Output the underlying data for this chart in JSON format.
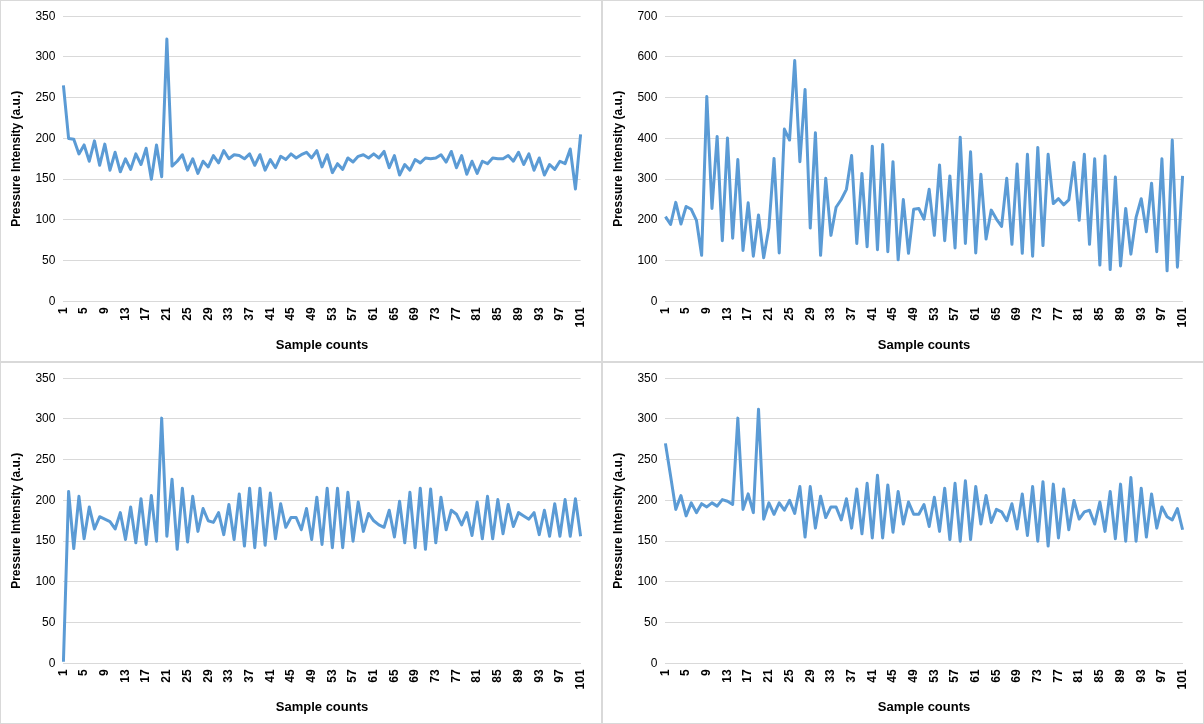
{
  "chart_data": [
    {
      "type": "line",
      "xlabel": "Sample counts",
      "ylabel": "Pressure Intensity (a.u.)",
      "categories": [
        "1",
        null,
        null,
        null,
        "5",
        null,
        null,
        null,
        "9",
        null,
        null,
        null,
        "13",
        null,
        null,
        null,
        "17",
        null,
        null,
        null,
        "21",
        null,
        null,
        null,
        "25",
        null,
        null,
        null,
        "29",
        null,
        null,
        null,
        "33",
        null,
        null,
        null,
        "37",
        null,
        null,
        null,
        "41",
        null,
        null,
        null,
        "45",
        null,
        null,
        null,
        "49",
        null,
        null,
        null,
        "53",
        null,
        null,
        null,
        "57",
        null,
        null,
        null,
        "61",
        null,
        null,
        null,
        "65",
        null,
        null,
        null,
        "69",
        null,
        null,
        null,
        "73",
        null,
        null,
        null,
        "77",
        null,
        null,
        null,
        "81",
        null,
        null,
        null,
        "85",
        null,
        null,
        null,
        "89",
        null,
        null,
        null,
        "93",
        null,
        null,
        null,
        "97",
        null,
        null,
        null,
        "101"
      ],
      "ylim": [
        0,
        350
      ],
      "yticks": [
        0,
        50,
        100,
        150,
        200,
        250,
        300,
        350
      ],
      "grid": "y",
      "legend": false,
      "marker": "none",
      "series": [
        {
          "color": "#5b9bd5",
          "values": [
            265,
            200,
            199,
            181,
            192,
            172,
            197,
            167,
            193,
            161,
            183,
            159,
            175,
            162,
            181,
            168,
            188,
            150,
            192,
            153,
            322,
            166,
            172,
            180,
            161,
            175,
            157,
            172,
            165,
            179,
            170,
            185,
            175,
            180,
            179,
            175,
            181,
            167,
            180,
            161,
            174,
            164,
            178,
            174,
            181,
            176,
            180,
            183,
            176,
            185,
            165,
            180,
            158,
            169,
            162,
            176,
            171,
            178,
            180,
            176,
            181,
            176,
            184,
            164,
            179,
            155,
            168,
            161,
            174,
            170,
            176,
            175,
            176,
            180,
            171,
            184,
            164,
            179,
            156,
            172,
            157,
            172,
            169,
            176,
            175,
            175,
            179,
            172,
            183,
            168,
            181,
            161,
            176,
            155,
            168,
            162,
            172,
            169,
            187,
            138,
            205
          ]
        }
      ]
    },
    {
      "type": "line",
      "xlabel": "Sample counts",
      "ylabel": "Pressure Intensity (a.u.)",
      "categories": [
        "1",
        null,
        null,
        null,
        "5",
        null,
        null,
        null,
        "9",
        null,
        null,
        null,
        "13",
        null,
        null,
        null,
        "17",
        null,
        null,
        null,
        "21",
        null,
        null,
        null,
        "25",
        null,
        null,
        null,
        "29",
        null,
        null,
        null,
        "33",
        null,
        null,
        null,
        "37",
        null,
        null,
        null,
        "41",
        null,
        null,
        null,
        "45",
        null,
        null,
        null,
        "49",
        null,
        null,
        null,
        "53",
        null,
        null,
        null,
        "57",
        null,
        null,
        null,
        "61",
        null,
        null,
        null,
        "65",
        null,
        null,
        null,
        "69",
        null,
        null,
        null,
        "73",
        null,
        null,
        null,
        "77",
        null,
        null,
        null,
        "81",
        null,
        null,
        null,
        "85",
        null,
        null,
        null,
        "89",
        null,
        null,
        null,
        "93",
        null,
        null,
        null,
        "97",
        null,
        null,
        null,
        "101"
      ],
      "ylim": [
        0,
        700
      ],
      "yticks": [
        0,
        100,
        200,
        300,
        400,
        500,
        600,
        700
      ],
      "grid": "y",
      "legend": false,
      "marker": "none",
      "series": [
        {
          "color": "#5b9bd5",
          "values": [
            208,
            189,
            243,
            190,
            233,
            226,
            199,
            113,
            503,
            228,
            405,
            149,
            401,
            155,
            348,
            125,
            242,
            111,
            212,
            107,
            180,
            351,
            119,
            423,
            396,
            591,
            343,
            520,
            180,
            414,
            113,
            302,
            162,
            231,
            250,
            275,
            358,
            142,
            314,
            134,
            381,
            127,
            385,
            122,
            343,
            102,
            250,
            118,
            226,
            228,
            202,
            275,
            162,
            335,
            149,
            308,
            131,
            403,
            142,
            367,
            119,
            312,
            153,
            224,
            202,
            184,
            302,
            140,
            337,
            118,
            361,
            111,
            378,
            137,
            361,
            240,
            252,
            237,
            249,
            341,
            199,
            361,
            140,
            350,
            89,
            357,
            78,
            305,
            87,
            228,
            116,
            206,
            252,
            171,
            290,
            122,
            350,
            75,
            396,
            84,
            308
          ]
        }
      ]
    },
    {
      "type": "line",
      "xlabel": "Sample counts",
      "ylabel": "Pressure Intensity (a.u.)",
      "categories": [
        "1",
        null,
        null,
        null,
        "5",
        null,
        null,
        null,
        "9",
        null,
        null,
        null,
        "13",
        null,
        null,
        null,
        "17",
        null,
        null,
        null,
        "21",
        null,
        null,
        null,
        "25",
        null,
        null,
        null,
        "29",
        null,
        null,
        null,
        "33",
        null,
        null,
        null,
        "37",
        null,
        null,
        null,
        "41",
        null,
        null,
        null,
        "45",
        null,
        null,
        null,
        "49",
        null,
        null,
        null,
        "53",
        null,
        null,
        null,
        "57",
        null,
        null,
        null,
        "61",
        null,
        null,
        null,
        "65",
        null,
        null,
        null,
        "69",
        null,
        null,
        null,
        "73",
        null,
        null,
        null,
        "77",
        null,
        null,
        null,
        "81",
        null,
        null,
        null,
        "85",
        null,
        null,
        null,
        "89",
        null,
        null,
        null,
        "93",
        null,
        null,
        null,
        "97",
        null,
        null,
        null,
        "101"
      ],
      "ylim": [
        0,
        350
      ],
      "yticks": [
        0,
        50,
        100,
        150,
        200,
        250,
        300,
        350
      ],
      "grid": "y",
      "legend": false,
      "marker": "none",
      "series": [
        {
          "color": "#5b9bd5",
          "values": [
            2,
            211,
            141,
            205,
            153,
            192,
            165,
            180,
            177,
            174,
            165,
            185,
            152,
            192,
            148,
            202,
            146,
            206,
            150,
            301,
            156,
            226,
            140,
            215,
            149,
            205,
            162,
            190,
            175,
            173,
            185,
            158,
            195,
            152,
            208,
            144,
            215,
            142,
            215,
            145,
            209,
            153,
            196,
            167,
            179,
            179,
            164,
            190,
            152,
            204,
            146,
            215,
            142,
            215,
            142,
            210,
            150,
            198,
            162,
            184,
            175,
            170,
            167,
            188,
            155,
            199,
            148,
            210,
            142,
            215,
            140,
            214,
            148,
            204,
            164,
            188,
            183,
            170,
            185,
            157,
            198,
            153,
            205,
            153,
            201,
            159,
            195,
            168,
            185,
            181,
            177,
            185,
            158,
            188,
            156,
            196,
            156,
            201,
            156,
            202,
            156
          ]
        }
      ]
    },
    {
      "type": "line",
      "xlabel": "Sample counts",
      "ylabel": "Pressure Intensity (a.u.)",
      "categories": [
        "1",
        null,
        null,
        null,
        "5",
        null,
        null,
        null,
        "9",
        null,
        null,
        null,
        "13",
        null,
        null,
        null,
        "17",
        null,
        null,
        null,
        "21",
        null,
        null,
        null,
        "25",
        null,
        null,
        null,
        "29",
        null,
        null,
        null,
        "33",
        null,
        null,
        null,
        "37",
        null,
        null,
        null,
        "41",
        null,
        null,
        null,
        "45",
        null,
        null,
        null,
        "49",
        null,
        null,
        null,
        "53",
        null,
        null,
        null,
        "57",
        null,
        null,
        null,
        "61",
        null,
        null,
        null,
        "65",
        null,
        null,
        null,
        "69",
        null,
        null,
        null,
        "73",
        null,
        null,
        null,
        "77",
        null,
        null,
        null,
        "81",
        null,
        null,
        null,
        "85",
        null,
        null,
        null,
        "89",
        null,
        null,
        null,
        "93",
        null,
        null,
        null,
        "97",
        null,
        null,
        null,
        "101"
      ],
      "ylim": [
        0,
        350
      ],
      "yticks": [
        0,
        50,
        100,
        150,
        200,
        250,
        300,
        350
      ],
      "grid": "y",
      "legend": false,
      "marker": "none",
      "series": [
        {
          "color": "#5b9bd5",
          "values": [
            270,
            230,
            189,
            206,
            181,
            197,
            185,
            196,
            192,
            197,
            193,
            201,
            199,
            195,
            301,
            189,
            208,
            185,
            312,
            177,
            197,
            183,
            197,
            188,
            200,
            184,
            217,
            155,
            217,
            166,
            205,
            179,
            192,
            192,
            176,
            202,
            166,
            214,
            159,
            221,
            154,
            231,
            154,
            219,
            161,
            211,
            171,
            198,
            183,
            183,
            195,
            168,
            204,
            162,
            215,
            152,
            221,
            150,
            224,
            152,
            217,
            171,
            206,
            173,
            189,
            186,
            175,
            196,
            165,
            208,
            157,
            217,
            150,
            223,
            144,
            220,
            154,
            214,
            164,
            200,
            177,
            186,
            188,
            171,
            198,
            162,
            211,
            153,
            220,
            150,
            228,
            150,
            215,
            155,
            208,
            166,
            192,
            180,
            176,
            190,
            164
          ]
        }
      ]
    }
  ]
}
